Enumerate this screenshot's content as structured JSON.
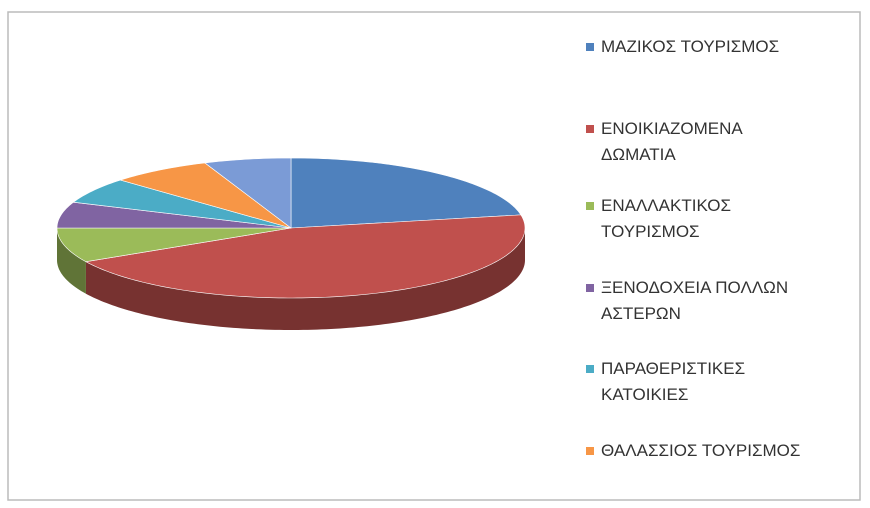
{
  "chart_data": {
    "type": "pie3d",
    "categories": [
      "ΜΑΖΙΚΟΣ ΤΟΥΡΙΣΜΟΣ",
      "ΕΝΟΙΚΙΑΖΟΜΕΝΑ ΔΩΜΑΤΙΑ",
      "ΕΝΑΛΛΑΚΤΙΚΟΣ ΤΟΥΡΙΣΜΟΣ",
      "ΞΕΝΟΔΟΧΕΙΑ ΠΟΛΛΩΝ ΑΣΤΕΡΩΝ",
      "ΠΑΡΑΘΕΡΙΣΤΙΚΕΣ ΚΑΤΟΙΚΙΕΣ",
      "ΘΑΛΑΣΣΙΟΣ ΤΟΥΡΙΣΜΟΣ",
      null
    ],
    "values": [
      22,
      45,
      8,
      6,
      6,
      7,
      6
    ],
    "colors": [
      "#4f81bd",
      "#c0504d",
      "#9bbb59",
      "#8064a2",
      "#4bacc6",
      "#f79646",
      "#7b9bd6"
    ],
    "legend": "right"
  }
}
